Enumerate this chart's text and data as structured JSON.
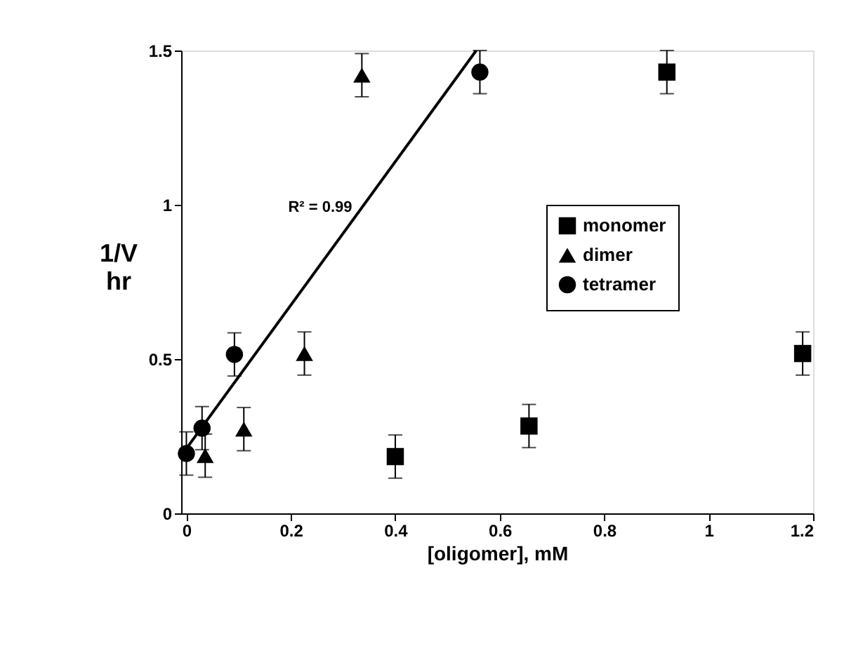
{
  "chart_data": {
    "type": "scatter",
    "xlabel": "[oligomer], mM",
    "ylabel": "1/V\nhr",
    "xlim": [
      -0.01,
      1.2
    ],
    "xticks": [
      0,
      0.2,
      0.4,
      0.6,
      0.8,
      1,
      1.2
    ],
    "ylim": [
      0,
      1.5
    ],
    "yticks": [
      0,
      0.5,
      1,
      1.5
    ],
    "grid": false,
    "legend": "right",
    "series": [
      {
        "name": "monomer",
        "marker": "square",
        "color": "#000000",
        "x": [
          0.4,
          0.656,
          0.92,
          1.18
        ],
        "values": [
          0.184,
          0.283,
          1.43,
          0.518
        ],
        "errors": [
          0.07,
          0.07,
          0.07,
          0.07
        ]
      },
      {
        "name": "dimer",
        "marker": "triangle",
        "color": "#000000",
        "x": [
          0.036,
          0.11,
          0.226,
          0.336
        ],
        "values": [
          0.187,
          0.273,
          0.518,
          1.42
        ],
        "errors": [
          0.07,
          0.07,
          0.07,
          0.07
        ]
      },
      {
        "name": "tetramer",
        "marker": "circle",
        "color": "#000000",
        "x": [
          0,
          0.03,
          0.092,
          0.562
        ],
        "values": [
          0.194,
          0.276,
          0.515,
          1.43
        ],
        "errors": [
          0.07,
          0.07,
          0.07,
          0.07
        ]
      },
      {
        "type": "line",
        "color": "#000000",
        "x": [
          0,
          0.555
        ],
        "values": [
          0.21,
          1.5
        ]
      }
    ],
    "annotations": [
      "R² = 0.99"
    ]
  }
}
